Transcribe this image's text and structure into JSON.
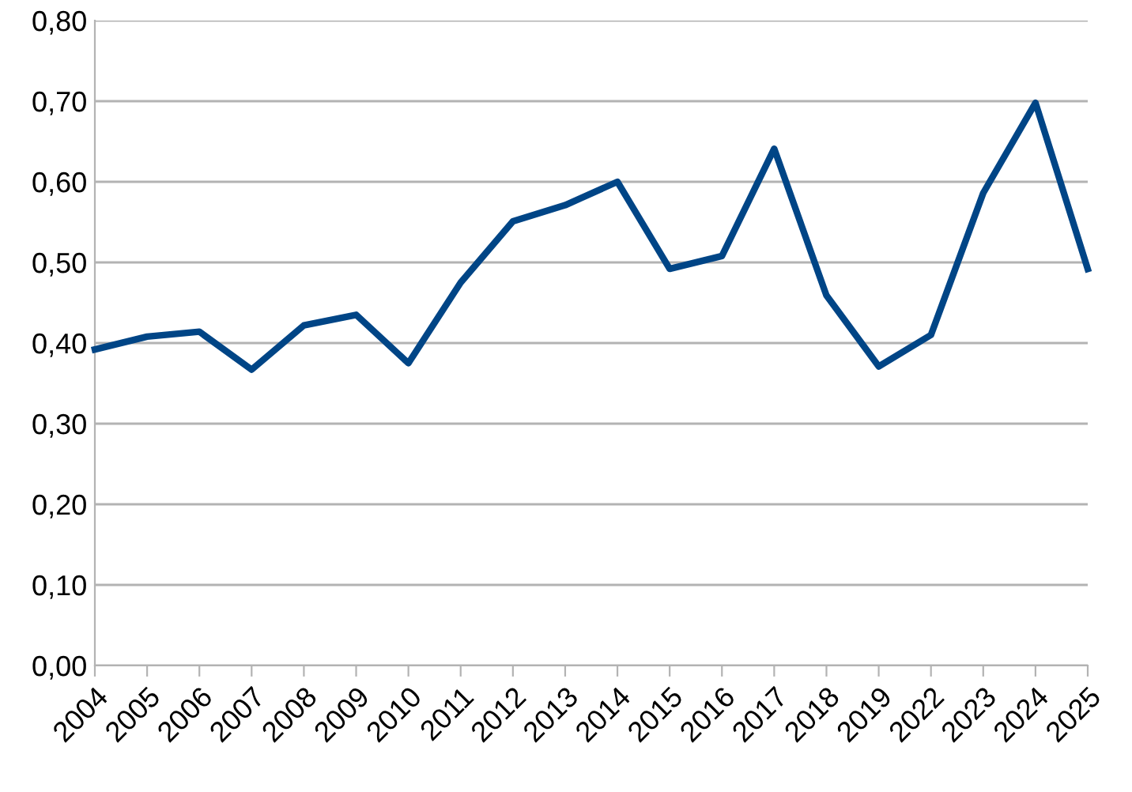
{
  "chart_data": {
    "type": "line",
    "categories": [
      "2004",
      "2005",
      "2006",
      "2007",
      "2008",
      "2009",
      "2010",
      "2011",
      "2012",
      "2013",
      "2014",
      "2015",
      "2016",
      "2017",
      "2018",
      "2019",
      "2022",
      "2023",
      "2024",
      "2025"
    ],
    "series": [
      {
        "color": "#004586",
        "values": [
          0.392,
          0.408,
          0.414,
          0.367,
          0.422,
          0.435,
          0.375,
          0.475,
          0.551,
          0.571,
          0.6,
          0.492,
          0.508,
          0.641,
          0.459,
          0.371,
          0.41,
          0.586,
          0.698,
          0.492
        ]
      }
    ],
    "ylim": [
      0,
      0.8
    ],
    "yticks": [
      {
        "value": 0,
        "label": "0,00"
      },
      {
        "value": 0.1,
        "label": "0,10"
      },
      {
        "value": 0.2,
        "label": "0,20"
      },
      {
        "value": 0.3,
        "label": "0,30"
      },
      {
        "value": 0.4,
        "label": "0,40"
      },
      {
        "value": 0.5,
        "label": "0,50"
      },
      {
        "value": 0.6,
        "label": "0,60"
      },
      {
        "value": 0.7,
        "label": "0,70"
      },
      {
        "value": 0.8,
        "label": "0,80"
      }
    ],
    "grid": "y",
    "marker": "none",
    "line_style": "solid"
  }
}
